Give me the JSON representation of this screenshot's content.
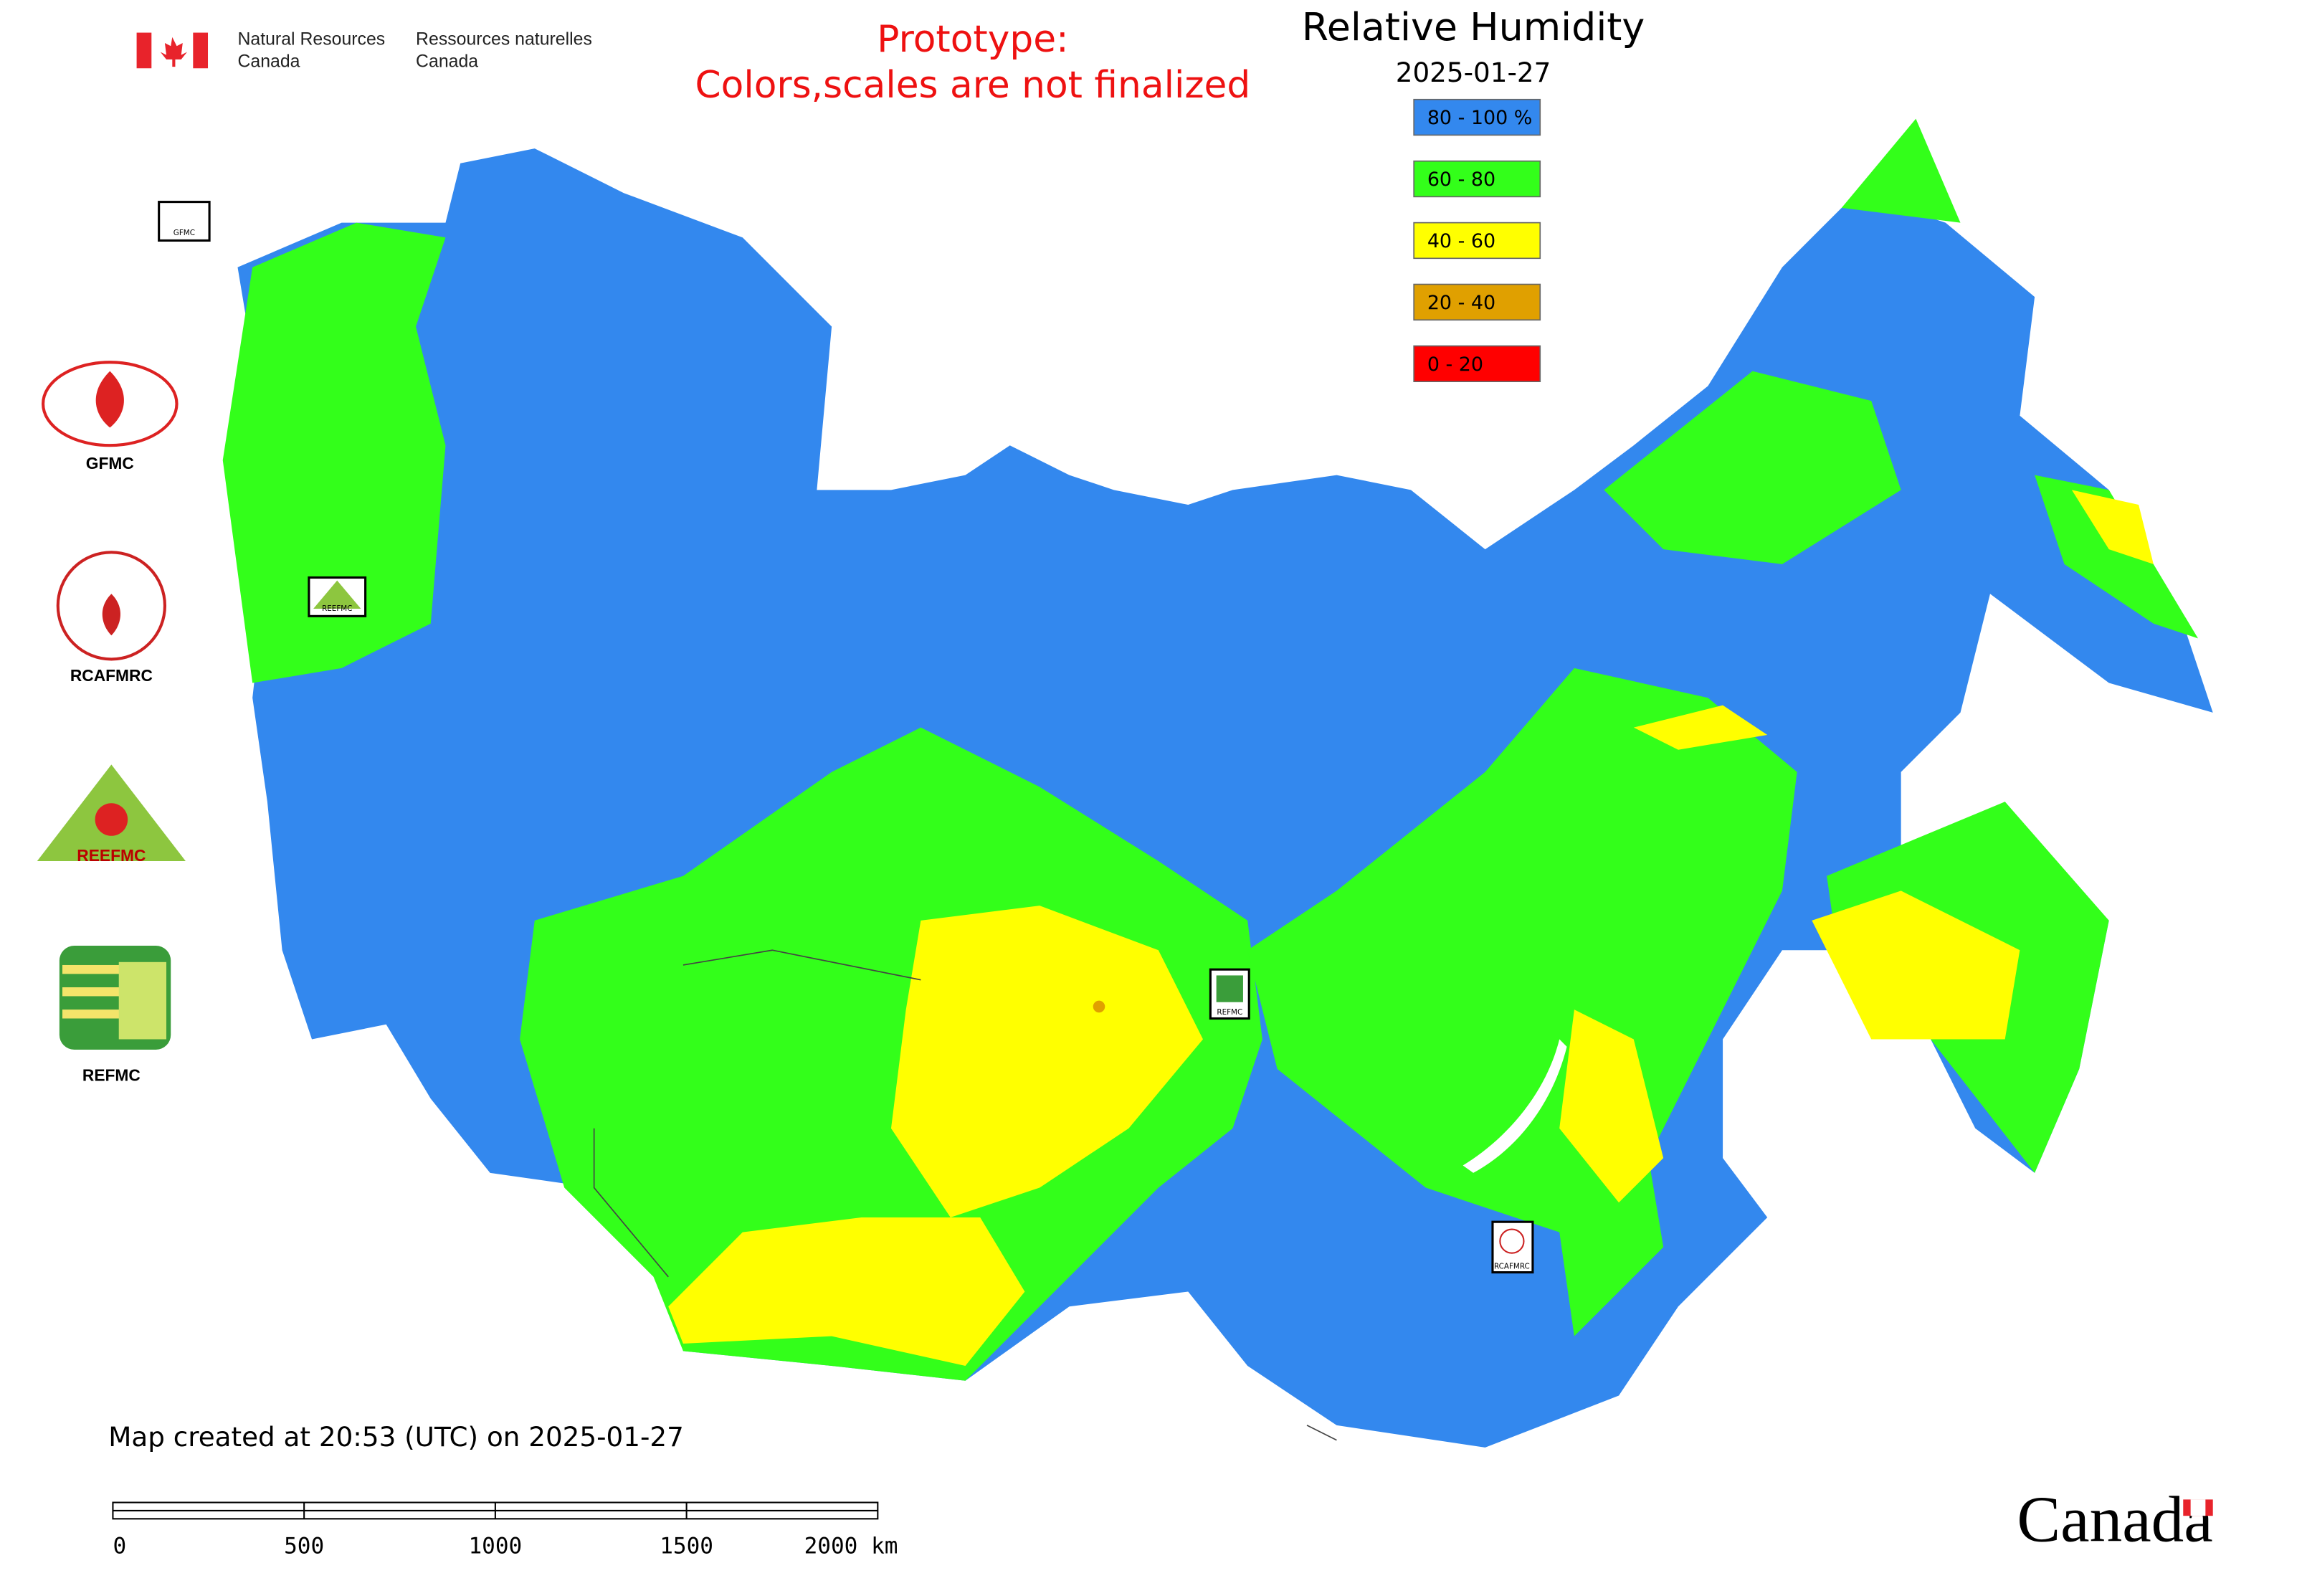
{
  "header": {
    "org_en": [
      "Natural Resources",
      "Canada"
    ],
    "org_fr": [
      "Ressources naturelles",
      "Canada"
    ]
  },
  "notice": [
    "Prototype:",
    "Colors,scales are not finalized"
  ],
  "title": "Relative Humidity",
  "date": "2025-01-27",
  "legend": [
    {
      "label": "80 - 100 %",
      "color": "#3388ee"
    },
    {
      "label": "60 - 80",
      "color": "#33ff1a"
    },
    {
      "label": "40 - 60",
      "color": "#ffff00"
    },
    {
      "label": "20 - 40",
      "color": "#e0a000"
    },
    {
      "label": "0 - 20",
      "color": "#ff0000"
    }
  ],
  "logos": [
    "GFMC",
    "RCAFMRC",
    "REEFMC",
    "REFMC"
  ],
  "markers": [
    "GFMC",
    "REEFMC",
    "REFMC",
    "RCAFMRC"
  ],
  "footer": "Map created at 20:53 (UTC) on 2025-01-27",
  "scale_bar": [
    "0",
    "500",
    "1000",
    "1500",
    "2000 km"
  ],
  "wordmark": "Canada"
}
